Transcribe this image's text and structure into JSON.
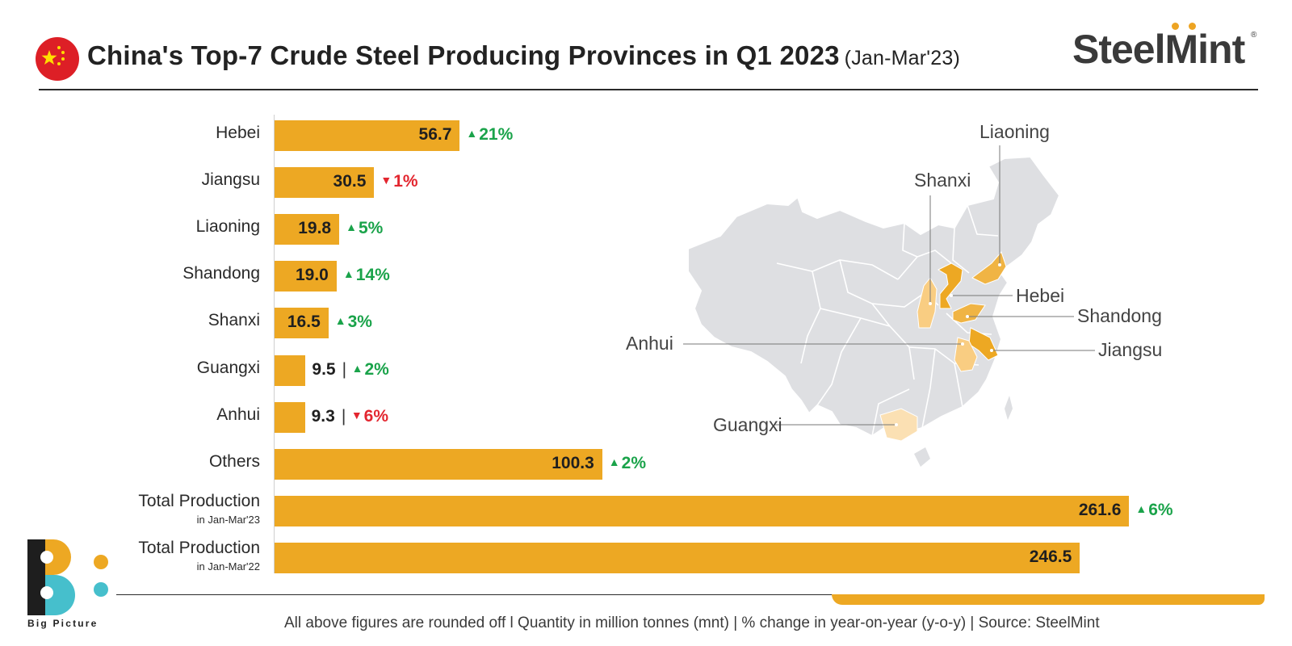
{
  "header": {
    "title": "China's Top-7 Crude Steel Producing Provinces in Q1 2023",
    "subtitle": "(Jan-Mar'23)",
    "brand": "SteelMint",
    "brand_mark": "®"
  },
  "chart_data": {
    "type": "bar",
    "orientation": "horizontal",
    "categories": [
      "Hebei",
      "Jiangsu",
      "Liaoning",
      "Shandong",
      "Shanxi",
      "Guangxi",
      "Anhui",
      "Others",
      "Total Production",
      "Total Production"
    ],
    "category_notes": [
      "",
      "",
      "",
      "",
      "",
      "",
      "",
      "",
      "in Jan-Mar'23",
      "in Jan-Mar'22"
    ],
    "values": [
      56.7,
      30.5,
      19.8,
      19.0,
      16.5,
      9.5,
      9.3,
      100.3,
      261.6,
      246.5
    ],
    "value_labels": [
      "56.7",
      "30.5",
      "19.8",
      "19.0",
      "16.5",
      "9.5",
      "9.3",
      "100.3",
      "261.6",
      "246.5"
    ],
    "changes": [
      "21%",
      "1%",
      "5%",
      "14%",
      "3%",
      "2%",
      "6%",
      "2%",
      "6%",
      ""
    ],
    "change_direction": [
      "up",
      "down",
      "up",
      "up",
      "up",
      "up",
      "down",
      "up",
      "up",
      ""
    ],
    "xlim": [
      0,
      262
    ],
    "bar_color": "#eda823",
    "up_color": "#1aa34a",
    "down_color": "#e3262f",
    "grid": false
  },
  "map": {
    "labels": [
      "Liaoning",
      "Shanxi",
      "Hebei",
      "Shandong",
      "Anhui",
      "Jiangsu",
      "Guangxi"
    ]
  },
  "logo": {
    "text": "Big Picture",
    "icon": "big-picture-logo"
  },
  "footer": {
    "note": "All above figures are rounded off l  Quantity in million tonnes (mnt)  |  % change in year-on-year (y-o-y)  |  Source: SteelMint"
  }
}
